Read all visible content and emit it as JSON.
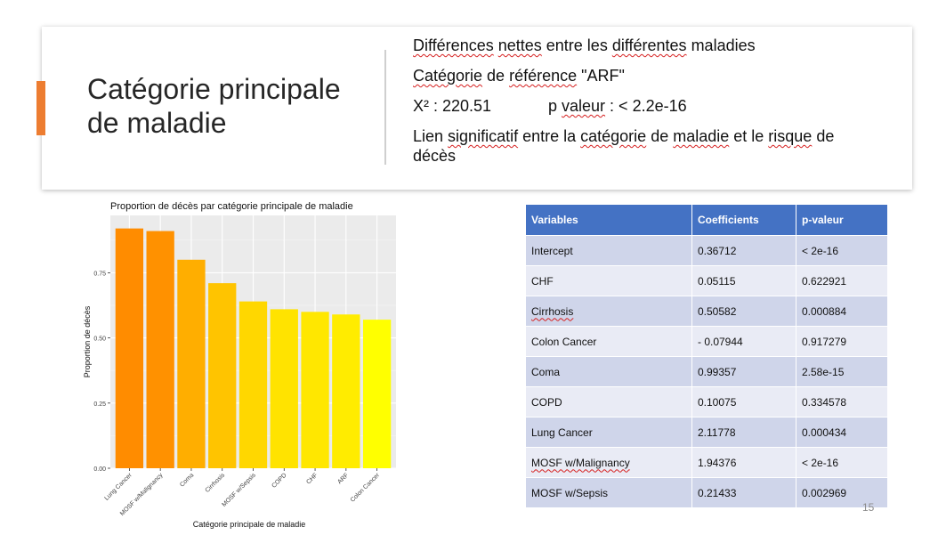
{
  "colors": {
    "accent": "#ed7d31",
    "table_header": "#4472c4",
    "row_odd": "#cfd5ea",
    "row_even": "#e9ebf5"
  },
  "slide": {
    "title_line1": "Catégorie principale",
    "title_line2": "de maladie",
    "points": {
      "p1": [
        "Différences",
        " ",
        "nettes",
        " entre les ",
        "différentes",
        " maladies"
      ],
      "p2": [
        "Catégorie",
        " de ",
        "référence",
        " \"ARF\""
      ],
      "chi": "X² : 220.51",
      "pval_word": "p ",
      "pval_underlined": "valeur",
      "pval_rest": " : < 2.2e-16",
      "p4": [
        "Lien ",
        "significatif",
        " entre la ",
        "catégorie",
        " de ",
        "maladie",
        " et le ",
        "risque",
        " de décès"
      ]
    },
    "page_number": "15"
  },
  "chart_data": {
    "type": "bar",
    "title": "Proportion de décès par catégorie principale de maladie",
    "xlabel": "Catégorie principale de maladie",
    "ylabel": "Proportion de décès",
    "categories": [
      "Lung Cancer",
      "MOSF w/Malignancy",
      "Coma",
      "Cirrhosis",
      "MOSF w/Sepsis",
      "COPD",
      "CHF",
      "ARF",
      "Colon Cancer"
    ],
    "values": [
      0.92,
      0.91,
      0.8,
      0.71,
      0.64,
      0.61,
      0.6,
      0.59,
      0.57
    ],
    "colors": [
      "#ff8c00",
      "#ff9100",
      "#ffae00",
      "#ffc400",
      "#ffd700",
      "#ffe300",
      "#ffe700",
      "#ffec00",
      "#ffff00"
    ],
    "yticks": [
      "0.00",
      "0.25",
      "0.50",
      "0.75"
    ],
    "ylim": [
      0,
      0.97
    ],
    "grid": true
  },
  "table": {
    "headers": [
      "Variables",
      "Coefficients",
      "p-valeur"
    ],
    "rows": [
      [
        "Intercept",
        "0.36712",
        "< 2e-16"
      ],
      [
        "CHF",
        "0.05115",
        "0.622921"
      ],
      [
        "Cirrhosis",
        "0.50582",
        "0.000884"
      ],
      [
        "Colon Cancer",
        "- 0.07944",
        "0.917279"
      ],
      [
        "Coma",
        "0.99357",
        "2.58e-15"
      ],
      [
        "COPD",
        "0.10075",
        "0.334578"
      ],
      [
        "Lung Cancer",
        "2.11778",
        "0.000434"
      ],
      [
        "MOSF w/Malignancy",
        "1.94376",
        "< 2e-16"
      ],
      [
        "MOSF w/Sepsis",
        "0.21433",
        "0.002969"
      ]
    ]
  }
}
